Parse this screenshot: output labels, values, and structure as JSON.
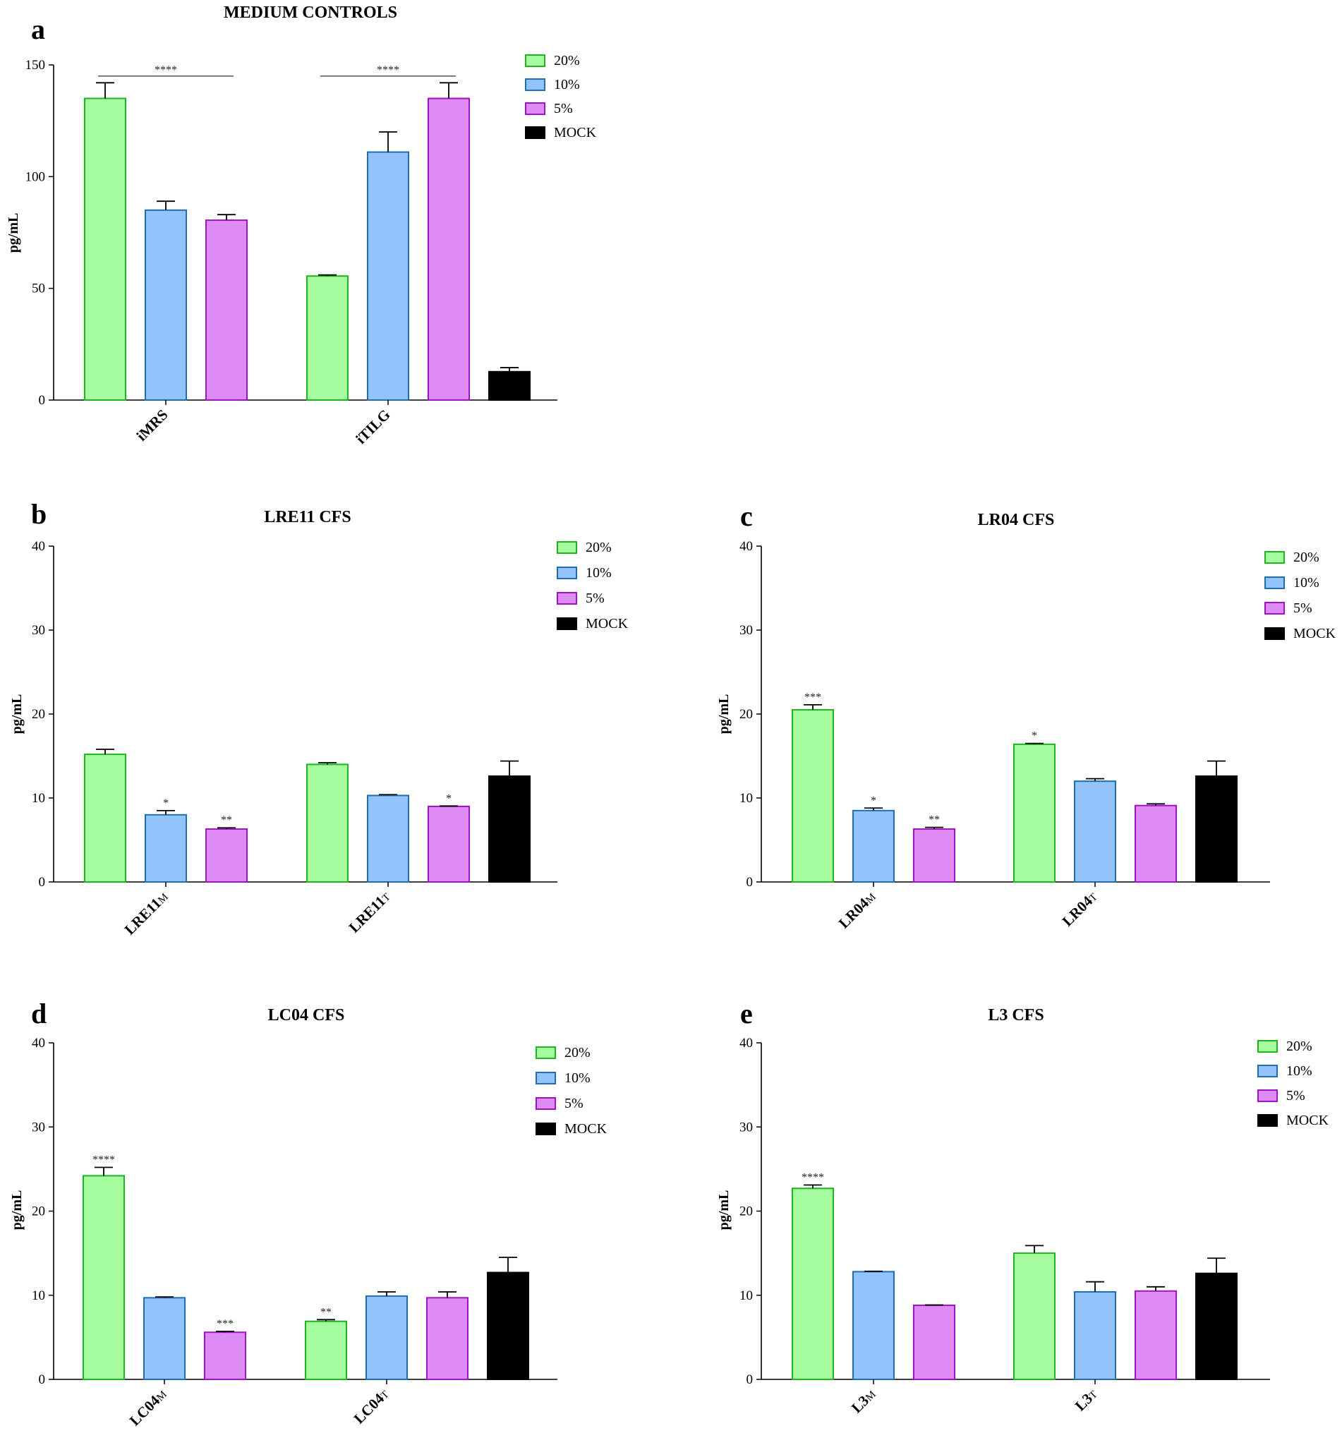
{
  "colors": {
    "20%": {
      "fill": "#a6fda0",
      "stroke": "#1eb41e"
    },
    "10%": {
      "fill": "#93c3fb",
      "stroke": "#1f6fb0"
    },
    "5%": {
      "fill": "#df8bf5",
      "stroke": "#a012c2"
    },
    "MOCK": {
      "fill": "#000000",
      "stroke": "#000000"
    }
  },
  "chart_data": [
    {
      "panel": "a",
      "type": "bar",
      "title": "MEDIUM CONTROLS",
      "ylabel": "pg/mL",
      "ylim": [
        0,
        150
      ],
      "yticks": [
        "0",
        "50",
        "100",
        "150"
      ],
      "legend": [
        "20%",
        "10%",
        "5%",
        "MOCK"
      ],
      "groups": [
        {
          "label": "iMRS",
          "sub": "",
          "bars": [
            {
              "series": "20%",
              "value": 135,
              "err": 7,
              "sig": ""
            },
            {
              "series": "10%",
              "value": 85,
              "err": 4,
              "sig": ""
            },
            {
              "series": "5%",
              "value": 80.5,
              "err": 2.5,
              "sig": ""
            }
          ]
        },
        {
          "label": "iTILG",
          "sub": "",
          "bars": [
            {
              "series": "20%",
              "value": 55.5,
              "err": 0.5,
              "sig": ""
            },
            {
              "series": "10%",
              "value": 111,
              "err": 9,
              "sig": ""
            },
            {
              "series": "5%",
              "value": 135,
              "err": 7,
              "sig": ""
            },
            {
              "series": "MOCK",
              "value": 12.7,
              "err": 1.8,
              "sig": ""
            }
          ]
        }
      ],
      "brackets": [
        {
          "from": [
            0,
            0
          ],
          "to": [
            0,
            2
          ],
          "y": 145,
          "label": "****"
        },
        {
          "from": [
            1,
            0
          ],
          "to": [
            1,
            2
          ],
          "y": 145,
          "label": "****"
        }
      ]
    },
    {
      "panel": "b",
      "type": "bar",
      "title": "LRE11 CFS",
      "ylabel": "pg/mL",
      "ylim": [
        0,
        40
      ],
      "yticks": [
        "0",
        "10",
        "20",
        "30",
        "40"
      ],
      "legend": [
        "20%",
        "10%",
        "5%",
        "MOCK"
      ],
      "groups": [
        {
          "label": "LRE11",
          "sub": "M",
          "bars": [
            {
              "series": "20%",
              "value": 15.2,
              "err": 0.6,
              "sig": ""
            },
            {
              "series": "10%",
              "value": 8.0,
              "err": 0.5,
              "sig": "*"
            },
            {
              "series": "5%",
              "value": 6.3,
              "err": 0.15,
              "sig": "**"
            }
          ]
        },
        {
          "label": "LRE11",
          "sub": "T",
          "bars": [
            {
              "series": "20%",
              "value": 14.0,
              "err": 0.2,
              "sig": ""
            },
            {
              "series": "10%",
              "value": 10.3,
              "err": 0.1,
              "sig": ""
            },
            {
              "series": "5%",
              "value": 9.0,
              "err": 0.05,
              "sig": "*"
            },
            {
              "series": "MOCK",
              "value": 12.6,
              "err": 1.8,
              "sig": ""
            }
          ]
        }
      ]
    },
    {
      "panel": "c",
      "type": "bar",
      "title": "LR04 CFS",
      "ylabel": "pg/mL",
      "ylim": [
        0,
        40
      ],
      "yticks": [
        "0",
        "10",
        "20",
        "30",
        "40"
      ],
      "legend": [
        "20%",
        "10%",
        "5%",
        "MOCK"
      ],
      "groups": [
        {
          "label": "LR04",
          "sub": "M",
          "bars": [
            {
              "series": "20%",
              "value": 20.5,
              "err": 0.6,
              "sig": "***"
            },
            {
              "series": "10%",
              "value": 8.5,
              "err": 0.3,
              "sig": "*"
            },
            {
              "series": "5%",
              "value": 6.3,
              "err": 0.2,
              "sig": "**"
            }
          ]
        },
        {
          "label": "LR04",
          "sub": "T",
          "bars": [
            {
              "series": "20%",
              "value": 16.4,
              "err": 0.1,
              "sig": "*"
            },
            {
              "series": "10%",
              "value": 12.0,
              "err": 0.3,
              "sig": ""
            },
            {
              "series": "5%",
              "value": 9.1,
              "err": 0.2,
              "sig": ""
            },
            {
              "series": "MOCK",
              "value": 12.6,
              "err": 1.8,
              "sig": ""
            }
          ]
        }
      ]
    },
    {
      "panel": "d",
      "type": "bar",
      "title": "LC04 CFS",
      "ylabel": "pg/mL",
      "ylim": [
        0,
        40
      ],
      "yticks": [
        "0",
        "10",
        "20",
        "30",
        "40"
      ],
      "legend": [
        "20%",
        "10%",
        "5%",
        "MOCK"
      ],
      "groups": [
        {
          "label": "LC04",
          "sub": "M",
          "bars": [
            {
              "series": "20%",
              "value": 24.2,
              "err": 1.0,
              "sig": "****"
            },
            {
              "series": "10%",
              "value": 9.7,
              "err": 0.1,
              "sig": ""
            },
            {
              "series": "5%",
              "value": 5.6,
              "err": 0.1,
              "sig": "***"
            }
          ]
        },
        {
          "label": "LC04",
          "sub": "T",
          "bars": [
            {
              "series": "20%",
              "value": 6.9,
              "err": 0.2,
              "sig": "**"
            },
            {
              "series": "10%",
              "value": 9.9,
              "err": 0.5,
              "sig": ""
            },
            {
              "series": "5%",
              "value": 9.7,
              "err": 0.7,
              "sig": ""
            },
            {
              "series": "MOCK",
              "value": 12.7,
              "err": 1.8,
              "sig": ""
            }
          ]
        }
      ]
    },
    {
      "panel": "e",
      "type": "bar",
      "title": "L3 CFS",
      "ylabel": "pg/mL",
      "ylim": [
        0,
        40
      ],
      "yticks": [
        "0",
        "10",
        "20",
        "30",
        "40"
      ],
      "legend": [
        "20%",
        "10%",
        "5%",
        "MOCK"
      ],
      "groups": [
        {
          "label": "L3",
          "sub": "M",
          "bars": [
            {
              "series": "20%",
              "value": 22.7,
              "err": 0.4,
              "sig": "****"
            },
            {
              "series": "10%",
              "value": 12.8,
              "err": 0.05,
              "sig": ""
            },
            {
              "series": "5%",
              "value": 8.8,
              "err": 0.05,
              "sig": ""
            }
          ]
        },
        {
          "label": "L3",
          "sub": "T",
          "bars": [
            {
              "series": "20%",
              "value": 15.0,
              "err": 0.9,
              "sig": ""
            },
            {
              "series": "10%",
              "value": 10.4,
              "err": 1.2,
              "sig": ""
            },
            {
              "series": "5%",
              "value": 10.5,
              "err": 0.5,
              "sig": ""
            },
            {
              "series": "MOCK",
              "value": 12.6,
              "err": 1.8,
              "sig": ""
            }
          ]
        }
      ]
    }
  ]
}
